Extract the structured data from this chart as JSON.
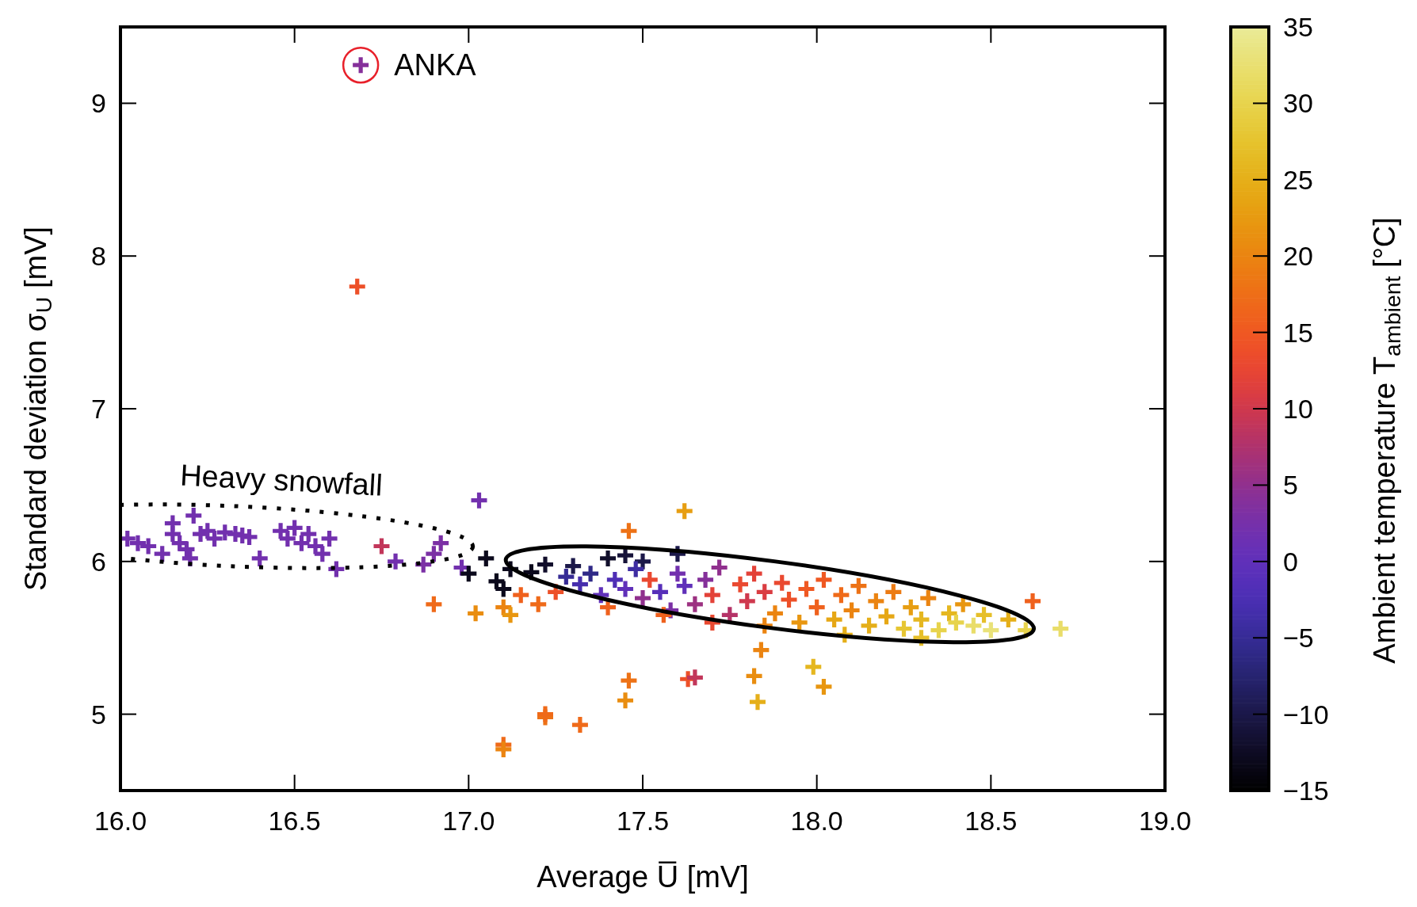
{
  "chart_data": {
    "type": "scatter",
    "xlabel": "Average U̅ [mV]",
    "ylabel": "Standard deviation σ$_{U}$ [mV]",
    "clabel": "Ambient temperature T$_{ambient}$ [°C]",
    "marker": "cross",
    "grid": false,
    "xlim": [
      16,
      19
    ],
    "xticks": [
      {
        "value": 16,
        "label": "16.0"
      },
      {
        "value": 16.5,
        "label": "16.5"
      },
      {
        "value": 17,
        "label": "17.0"
      },
      {
        "value": 17.5,
        "label": "17.5"
      },
      {
        "value": 18,
        "label": "18.0"
      },
      {
        "value": 18.5,
        "label": "18.5"
      },
      {
        "value": 19,
        "label": "19.0"
      }
    ],
    "ylim": [
      4.5,
      9.5
    ],
    "yticks": [
      5,
      6,
      7,
      8,
      9
    ],
    "clim": [
      -15,
      35
    ],
    "cticks": [
      {
        "value": -15,
        "label": "−15"
      },
      {
        "value": -10,
        "label": "−10"
      },
      {
        "value": -5,
        "label": "−5"
      },
      0,
      5,
      10,
      15,
      20,
      25,
      30,
      35
    ],
    "annotations": [
      "Heavy snowfall",
      {
        "text": "ANKA",
        "x": 16.69,
        "y": 9.25
      }
    ],
    "x": [
      16.02,
      16.05,
      16.08,
      16.12,
      16.15,
      16.17,
      16.19,
      16.2,
      16.21,
      16.23,
      16.25,
      16.27,
      16.3,
      16.33,
      16.35,
      16.37,
      16.4,
      16.46,
      16.48,
      16.5,
      16.52,
      16.54,
      16.56,
      16.58,
      16.6,
      16.62,
      16.15,
      16.75,
      16.79,
      16.87,
      16.9,
      16.92,
      17.03,
      16.98,
      17,
      17.05,
      17.08,
      17.1,
      17.12,
      17.18,
      17.22,
      17.3,
      17.4,
      17.45,
      17.5,
      17.6,
      16.68,
      16.69,
      16.9,
      17.02,
      17.1,
      17.12,
      17.1,
      17.1,
      17.22,
      17.22,
      17.32,
      17.45,
      17.46,
      17.63,
      17.65,
      17.62,
      17.46,
      17.82,
      17.84,
      17.83,
      17.99,
      18.02,
      18.7,
      18.62,
      18.6,
      17.15,
      17.2,
      17.25,
      17.28,
      17.32,
      17.35,
      17.38,
      17.4,
      17.42,
      17.45,
      17.48,
      17.5,
      17.52,
      17.55,
      17.58,
      17.6,
      17.62,
      17.65,
      17.68,
      17.7,
      17.72,
      17.75,
      17.78,
      17.8,
      17.82,
      17.85,
      17.88,
      17.9,
      17.92,
      17.95,
      17.97,
      18,
      18.02,
      18.05,
      18.07,
      18.1,
      18.12,
      18.15,
      18.17,
      18.2,
      18.22,
      18.25,
      18.27,
      18.3,
      18.32,
      18.35,
      18.38,
      18.4,
      18.42,
      18.45,
      18.48,
      18.5,
      18.55,
      17.56,
      17.7,
      17.85,
      18.08,
      18.3
    ],
    "values": [
      6.15,
      6.12,
      6.1,
      6.05,
      6.18,
      6.12,
      6.08,
      6.02,
      6.3,
      6.18,
      6.2,
      6.15,
      6.19,
      6.18,
      6.17,
      6.16,
      6.02,
      6.2,
      6.15,
      6.22,
      6.12,
      6.18,
      6.1,
      6.05,
      6.15,
      5.95,
      6.25,
      6.1,
      6,
      5.98,
      6.05,
      6.12,
      6.4,
      5.96,
      5.92,
      6.02,
      5.87,
      5.82,
      5.95,
      5.93,
      5.98,
      5.97,
      6.02,
      6.04,
      6,
      6.05,
      7.8,
      9.25,
      5.72,
      5.66,
      5.7,
      5.65,
      4.8,
      4.77,
      4.98,
      5,
      4.93,
      5.09,
      5.22,
      5.23,
      5.24,
      6.33,
      6.2,
      5.25,
      5.42,
      5.08,
      5.31,
      5.18,
      5.56,
      5.74,
      5.55,
      5.78,
      5.72,
      5.8,
      5.9,
      5.85,
      5.92,
      5.78,
      5.7,
      5.88,
      5.82,
      5.95,
      5.76,
      5.88,
      5.8,
      5.68,
      5.92,
      5.84,
      5.72,
      5.88,
      5.78,
      5.96,
      5.65,
      5.85,
      5.74,
      5.92,
      5.8,
      5.66,
      5.86,
      5.75,
      5.6,
      5.82,
      5.7,
      5.88,
      5.62,
      5.78,
      5.68,
      5.84,
      5.58,
      5.74,
      5.64,
      5.8,
      5.56,
      5.7,
      5.62,
      5.76,
      5.55,
      5.66,
      5.6,
      5.72,
      5.58,
      5.65,
      5.55,
      5.62,
      5.65,
      5.6,
      5.58,
      5.52,
      5.5
    ],
    "cvalues": [
      2,
      2,
      2,
      2,
      2,
      2,
      2,
      2,
      2,
      2,
      2,
      2,
      2,
      2,
      2,
      2,
      2,
      2,
      2,
      2,
      2,
      2,
      2,
      2,
      2,
      2,
      2,
      9,
      2,
      3,
      3,
      3,
      2,
      2,
      -13,
      -13,
      -13,
      -13,
      -13,
      -13,
      -12,
      -10,
      -12,
      -11,
      -10,
      -10,
      14,
      4,
      17,
      21,
      20,
      22,
      17,
      20,
      18,
      17,
      17,
      21,
      18,
      14,
      9,
      23,
      18,
      21,
      20,
      25,
      26,
      22,
      32,
      16,
      30,
      16,
      17,
      14,
      -5,
      -3,
      -6,
      0,
      16,
      -2,
      0,
      -4,
      5,
      13,
      -1,
      3,
      2,
      0,
      6,
      4,
      12,
      5,
      8,
      13,
      10,
      12,
      11,
      20,
      13,
      14,
      22,
      15,
      16,
      15,
      24,
      17,
      20,
      18,
      25,
      20,
      24,
      19,
      28,
      23,
      26,
      20,
      30,
      26,
      30,
      22,
      32,
      27,
      33,
      25,
      16,
      13,
      20,
      25,
      27
    ]
  }
}
